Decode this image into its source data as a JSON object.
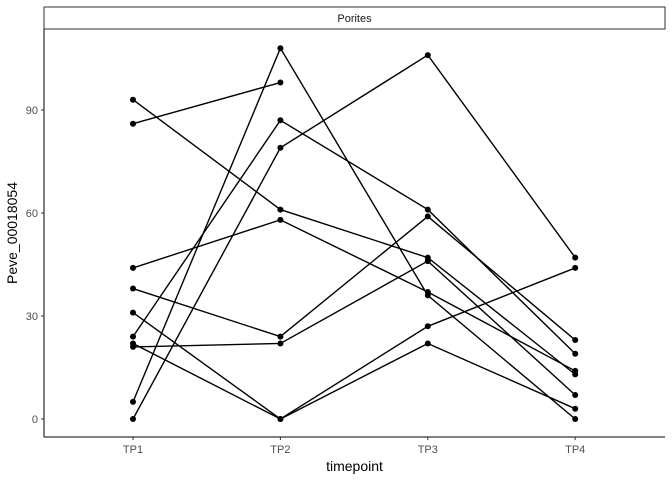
{
  "chart_data": {
    "type": "line",
    "facet_label": "Porites",
    "xlabel": "timepoint",
    "ylabel": "Peve_00018054",
    "categories": [
      "TP1",
      "TP2",
      "TP3",
      "TP4"
    ],
    "yticks": [
      0,
      30,
      60,
      90
    ],
    "ylim": [
      -4,
      113
    ],
    "grid": false,
    "series": [
      {
        "values": [
          86,
          98,
          null,
          null
        ]
      },
      {
        "values": [
          93,
          61,
          47,
          13
        ]
      },
      {
        "values": [
          44,
          58,
          37,
          14
        ]
      },
      {
        "values": [
          38,
          24,
          59,
          23
        ]
      },
      {
        "values": [
          31,
          0,
          22,
          3
        ]
      },
      {
        "values": [
          24,
          87,
          61,
          19
        ]
      },
      {
        "values": [
          22,
          0,
          27,
          44
        ]
      },
      {
        "values": [
          21,
          22,
          46,
          7
        ]
      },
      {
        "values": [
          5,
          108,
          36,
          0
        ]
      },
      {
        "values": [
          0,
          79,
          106,
          47
        ]
      }
    ],
    "color": "#000000"
  }
}
